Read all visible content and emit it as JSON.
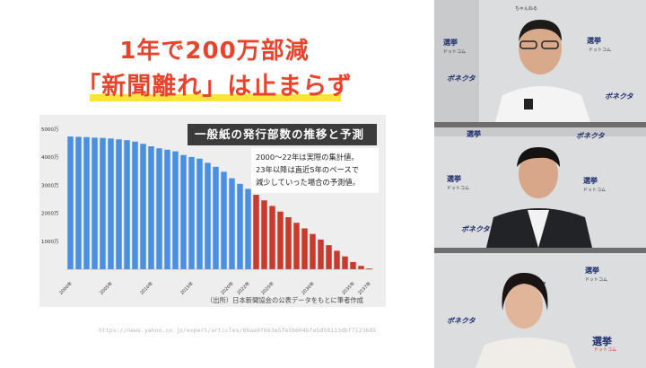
{
  "slide": {
    "title_line1": "1年で200万部減",
    "title_line2": "「新聞離れ」は止まらず",
    "chart_title": "一般紙の発行部数の推移と予測",
    "note_lines": [
      "2000～22年は実際の集計値。",
      "23年以降は直近5年のペースで",
      "減少していった場合の予測値。"
    ],
    "source": "（出所）日本新聞協会の公表データをもとに筆者作成",
    "url": "https://news.yahoo.co.jp/expert/articles/86aa9f663e5fe5b604bfe5d50113dbf7123685"
  },
  "chart_data": {
    "type": "bar",
    "title": "一般紙の発行部数の推移と予測",
    "ylim": [
      0,
      5000
    ],
    "y_ticks": [
      "5000万",
      "4000万",
      "3000万",
      "2000万",
      "1000万"
    ],
    "y_tick_values": [
      5000,
      4000,
      3000,
      2000,
      1000
    ],
    "x_tick_labels": [
      "2000年",
      "2005年",
      "2010年",
      "2015年",
      "2020年",
      "2022年",
      "2025年",
      "2030年",
      "2035年",
      "2037年"
    ],
    "x_tick_years": [
      2000,
      2005,
      2010,
      2015,
      2020,
      2022,
      2025,
      2030,
      2035,
      2037
    ],
    "series": [
      {
        "name": "実際の集計値",
        "color": "#4a90e2",
        "x": [
          2000,
          2001,
          2002,
          2003,
          2004,
          2005,
          2006,
          2007,
          2008,
          2009,
          2010,
          2011,
          2012,
          2013,
          2014,
          2015,
          2016,
          2017,
          2018,
          2019,
          2020,
          2021,
          2022
        ],
        "values": [
          4740,
          4730,
          4720,
          4700,
          4690,
          4670,
          4640,
          4610,
          4560,
          4480,
          4390,
          4320,
          4270,
          4210,
          4080,
          4010,
          3950,
          3800,
          3660,
          3480,
          3250,
          3050,
          2870
        ]
      },
      {
        "name": "予測値",
        "color": "#c9392c",
        "x": [
          2023,
          2024,
          2025,
          2026,
          2027,
          2028,
          2029,
          2030,
          2031,
          2032,
          2033,
          2034,
          2035,
          2036,
          2037
        ],
        "values": [
          2660,
          2460,
          2260,
          2060,
          1860,
          1660,
          1460,
          1260,
          1060,
          860,
          660,
          460,
          260,
          120,
          30
        ]
      }
    ]
  },
  "video": {
    "logo_main": "選挙",
    "logo_sub": "ドットコム",
    "logo_channel": "ちゃんねる",
    "sponsor": "ボネクタ"
  },
  "colors": {
    "title_red": "#e8432c",
    "highlight_yellow": "#fde43a",
    "bar_blue": "#4a90e2",
    "bar_red": "#c9392c"
  }
}
